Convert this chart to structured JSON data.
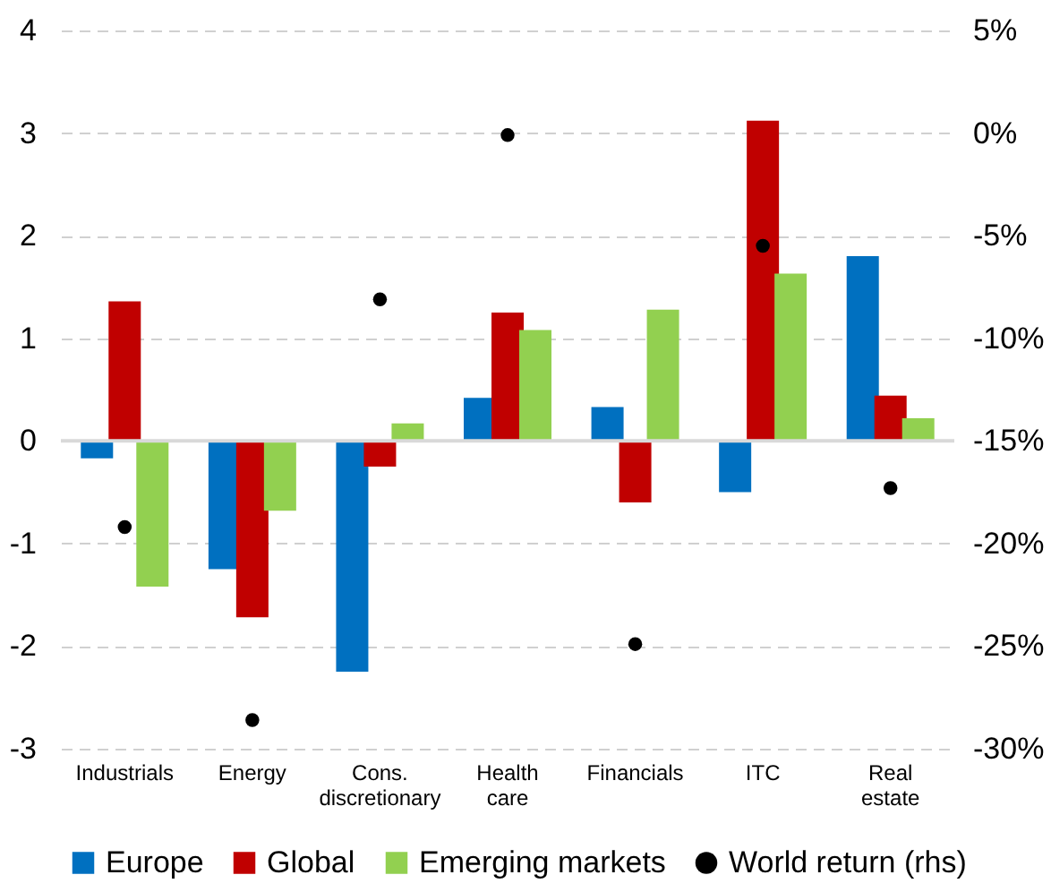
{
  "chart_data": {
    "type": "bar",
    "categories": [
      "Industrials",
      "Energy",
      "Cons. discretionary",
      "Health care",
      "Financials",
      "ITC",
      "Real estate"
    ],
    "series": [
      {
        "name": "Europe",
        "color": "#0070c0",
        "values": [
          -0.17,
          -1.25,
          -2.25,
          0.42,
          0.33,
          -0.5,
          1.8
        ]
      },
      {
        "name": "Global",
        "color": "#c00000",
        "values": [
          1.36,
          -1.72,
          -0.25,
          1.25,
          -0.6,
          3.12,
          0.44
        ]
      },
      {
        "name": "Emerging markets",
        "color": "#92d050",
        "values": [
          -1.42,
          -0.68,
          0.17,
          1.08,
          1.28,
          1.63,
          0.22
        ]
      },
      {
        "name": "World return (rhs)",
        "color": "#000000",
        "type": "scatter",
        "axis": "y2",
        "marker": "circle",
        "values": [
          -19.2,
          -28.6,
          -8.1,
          -0.1,
          -24.9,
          -5.5,
          -17.3
        ]
      }
    ],
    "ylim": [
      -3,
      4
    ],
    "yticks": [
      -3,
      -2,
      -1,
      0,
      1,
      2,
      3,
      4
    ],
    "y2lim": [
      -30,
      5
    ],
    "y2ticks": [
      {
        "value": -30,
        "label": "-30%"
      },
      {
        "value": -25,
        "label": "-25%"
      },
      {
        "value": -20,
        "label": "-20%"
      },
      {
        "value": -15,
        "label": "-15%"
      },
      {
        "value": -10,
        "label": "-10%"
      },
      {
        "value": -5,
        "label": "-5%"
      },
      {
        "value": 0,
        "label": "0%"
      },
      {
        "value": 5,
        "label": "5%"
      }
    ],
    "ref_lines": [
      {
        "axis": "y",
        "value": 0,
        "color": "#d9d9d9"
      }
    ],
    "grid": "y",
    "legend": "bottom"
  }
}
